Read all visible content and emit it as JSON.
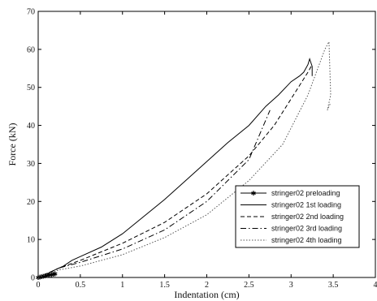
{
  "chart_data": {
    "type": "line",
    "xlabel": "Indentation (cm)",
    "ylabel": "Force (kN)",
    "xlim": [
      0,
      4
    ],
    "ylim": [
      0,
      70
    ],
    "x_ticks": [
      0,
      0.5,
      1,
      1.5,
      2,
      2.5,
      3,
      3.5,
      4
    ],
    "x_tick_labels": [
      "0",
      "0.5",
      "1",
      "1.5",
      "2",
      "2.5",
      "3",
      "3.5",
      "4"
    ],
    "y_ticks": [
      0,
      10,
      20,
      30,
      40,
      50,
      60,
      70
    ],
    "y_tick_labels": [
      "0",
      "10",
      "20",
      "30",
      "40",
      "50",
      "60",
      "70"
    ],
    "grid": false,
    "legend_position": "lower-right",
    "series": [
      {
        "name": "stringer02 preloading",
        "style": "solid-star",
        "color": "#000000",
        "x": [
          0.0,
          0.02,
          0.04,
          0.06,
          0.08,
          0.1,
          0.12,
          0.14,
          0.16,
          0.18,
          0.2
        ],
        "y": [
          0.0,
          0.1,
          0.2,
          0.3,
          0.4,
          0.5,
          0.6,
          0.7,
          0.8,
          0.9,
          1.0
        ]
      },
      {
        "name": "stringer02 1st loading",
        "style": "solid",
        "color": "#000000",
        "x": [
          0.0,
          0.1,
          0.2,
          0.3,
          0.4,
          0.5,
          0.75,
          1.0,
          1.25,
          1.5,
          1.75,
          2.0,
          2.25,
          2.5,
          2.7,
          2.85,
          3.0,
          3.1,
          3.15,
          3.2,
          3.22,
          3.25,
          3.25
        ],
        "y": [
          0.0,
          0.8,
          2.0,
          3.0,
          4.5,
          5.5,
          8.0,
          11.5,
          16.0,
          20.5,
          25.5,
          30.5,
          35.5,
          40.0,
          45.0,
          48.0,
          51.5,
          53.0,
          54.0,
          56.0,
          57.5,
          55.5,
          53.0
        ]
      },
      {
        "name": "stringer02 2nd loading",
        "style": "dashed",
        "color": "#000000",
        "x": [
          0.0,
          0.25,
          0.5,
          1.0,
          1.5,
          2.0,
          2.5,
          2.8,
          3.0,
          3.2,
          3.25
        ],
        "y": [
          0.0,
          2.5,
          4.5,
          9.0,
          14.5,
          22.0,
          32.0,
          40.0,
          47.0,
          54.0,
          56.0
        ]
      },
      {
        "name": "stringer02 3rd loading",
        "style": "dashdot",
        "color": "#000000",
        "x": [
          0.0,
          0.25,
          0.5,
          1.0,
          1.5,
          2.0,
          2.5,
          2.75
        ],
        "y": [
          0.0,
          2.5,
          4.0,
          7.5,
          12.5,
          20.0,
          31.0,
          44.0
        ]
      },
      {
        "name": "stringer02 4th loading",
        "style": "dotted",
        "color": "#555555",
        "x": [
          0.0,
          0.25,
          0.5,
          1.0,
          1.5,
          2.0,
          2.5,
          2.9,
          3.2,
          3.4,
          3.45,
          3.47,
          3.43,
          3.47
        ],
        "y": [
          0.0,
          2.0,
          3.0,
          6.0,
          10.5,
          16.5,
          25.5,
          35.0,
          48.0,
          60.0,
          62.0,
          48.0,
          44.0,
          46.0
        ]
      }
    ]
  }
}
